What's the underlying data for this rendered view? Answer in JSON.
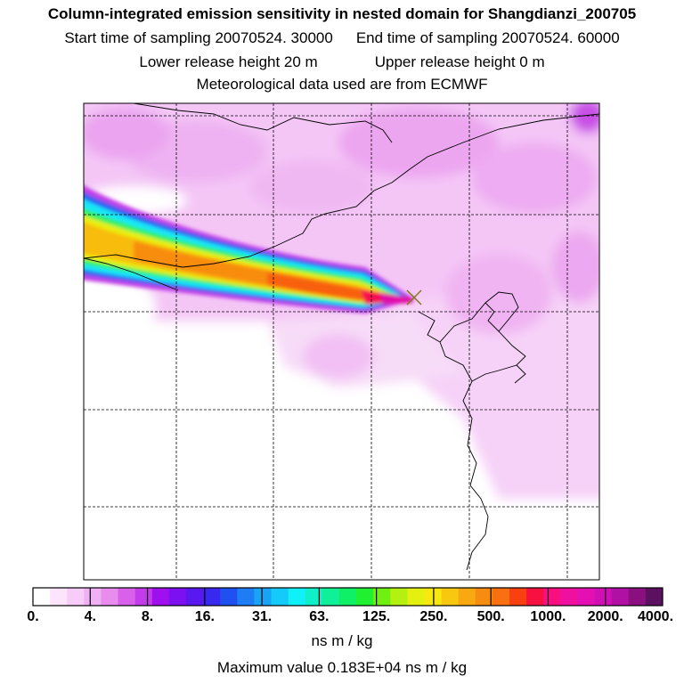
{
  "header": {
    "title": "Column-integrated emission sensitivity in nested domain for Shangdianzi_200705",
    "start_label": "Start time of sampling 20070524. 30000",
    "end_label": "End time of sampling 20070524. 60000",
    "lower_label": "Lower release height   20 m",
    "upper_label": "Upper release height    0 m",
    "met_label": "Meteorological data used are from ECMWF"
  },
  "colorbar": {
    "tick_labels": [
      "0.",
      "4.",
      "8.",
      "16.",
      "31.",
      "63.",
      "125.",
      "250.",
      "500.",
      "1000.",
      "2000.",
      "4000."
    ],
    "colors": [
      "#ffffff",
      "#fce4fc",
      "#f8ccf8",
      "#f0b0f4",
      "#e88cee",
      "#d860ea",
      "#c23cea",
      "#a010ee",
      "#7c10f0",
      "#5a18f0",
      "#3828f0",
      "#2050f0",
      "#1e7cf4",
      "#18a4f6",
      "#14caf8",
      "#10f0f8",
      "#10f0c8",
      "#10f098",
      "#10f066",
      "#20f030",
      "#70f010",
      "#b4f010",
      "#e4f010",
      "#f8e810",
      "#f8c810",
      "#f8a810",
      "#f88c10",
      "#f87010",
      "#f84010",
      "#f81040",
      "#f81080",
      "#f010a0",
      "#e410b4",
      "#d010b4",
      "#b010a4",
      "#8a1080",
      "#5c1060"
    ],
    "units": "ns m / kg",
    "max_label": "Maximum value  0.183E+04 ns m / kg"
  },
  "map": {
    "receptor_marker": "x-marker-icon",
    "receptor_color": "#7a7a10"
  }
}
